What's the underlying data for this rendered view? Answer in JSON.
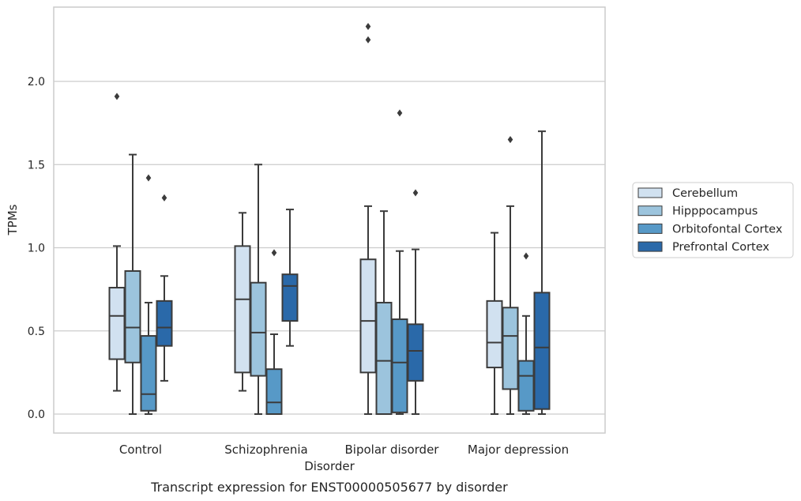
{
  "chart_data": {
    "type": "boxplot",
    "title": "",
    "caption": "Transcript expression for ENST00000505677 by disorder",
    "xlabel": "Disorder",
    "ylabel": "TPMs",
    "ylim": [
      -0.11,
      2.46
    ],
    "yticks": [
      "0.0",
      "0.5",
      "1.0",
      "1.5",
      "2.0"
    ],
    "grid": "horizontal",
    "legend_position": "right",
    "categories": [
      "Control",
      "Schizophrenia",
      "Bipolar disorder",
      "Major depression"
    ],
    "series": [
      {
        "name": "Cerebellum",
        "color": "#d1e1f0",
        "boxes": [
          {
            "whislo": 0.14,
            "q1": 0.33,
            "med": 0.59,
            "q3": 0.76,
            "whishi": 1.01,
            "fliers": [
              1.91
            ]
          },
          {
            "whislo": 0.14,
            "q1": 0.25,
            "med": 0.69,
            "q3": 1.01,
            "whishi": 1.21,
            "fliers": []
          },
          {
            "whislo": 0.0,
            "q1": 0.25,
            "med": 0.56,
            "q3": 0.93,
            "whishi": 1.25,
            "fliers": [
              2.25,
              2.33
            ]
          },
          {
            "whislo": 0.0,
            "q1": 0.28,
            "med": 0.43,
            "q3": 0.68,
            "whishi": 1.09,
            "fliers": []
          }
        ]
      },
      {
        "name": "Hipppocampus",
        "color": "#9cc4dd",
        "boxes": [
          {
            "whislo": 0.0,
            "q1": 0.31,
            "med": 0.52,
            "q3": 0.86,
            "whishi": 1.56,
            "fliers": []
          },
          {
            "whislo": 0.0,
            "q1": 0.23,
            "med": 0.49,
            "q3": 0.79,
            "whishi": 1.5,
            "fliers": []
          },
          {
            "whislo": 0.0,
            "q1": 0.0,
            "med": 0.32,
            "q3": 0.67,
            "whishi": 1.22,
            "fliers": []
          },
          {
            "whislo": 0.0,
            "q1": 0.15,
            "med": 0.47,
            "q3": 0.64,
            "whishi": 1.25,
            "fliers": [
              1.65
            ]
          }
        ]
      },
      {
        "name": "Orbitofontal Cortex",
        "color": "#5799c7",
        "boxes": [
          {
            "whislo": 0.0,
            "q1": 0.02,
            "med": 0.12,
            "q3": 0.47,
            "whishi": 0.67,
            "fliers": [
              1.42
            ]
          },
          {
            "whislo": 0.0,
            "q1": 0.0,
            "med": 0.07,
            "q3": 0.27,
            "whishi": 0.48,
            "fliers": [
              0.97
            ]
          },
          {
            "whislo": 0.0,
            "q1": 0.01,
            "med": 0.31,
            "q3": 0.57,
            "whishi": 0.98,
            "fliers": [
              1.81
            ]
          },
          {
            "whislo": 0.0,
            "q1": 0.02,
            "med": 0.23,
            "q3": 0.32,
            "whishi": 0.59,
            "fliers": [
              0.95
            ]
          }
        ]
      },
      {
        "name": "Prefrontal Cortex",
        "color": "#2a69a9",
        "boxes": [
          {
            "whislo": 0.2,
            "q1": 0.41,
            "med": 0.52,
            "q3": 0.68,
            "whishi": 0.83,
            "fliers": [
              1.3
            ]
          },
          {
            "whislo": 0.41,
            "q1": 0.56,
            "med": 0.77,
            "q3": 0.84,
            "whishi": 1.23,
            "fliers": []
          },
          {
            "whislo": 0.0,
            "q1": 0.2,
            "med": 0.38,
            "q3": 0.54,
            "whishi": 0.99,
            "fliers": [
              1.33
            ]
          },
          {
            "whislo": 0.0,
            "q1": 0.03,
            "med": 0.4,
            "q3": 0.73,
            "whishi": 1.7,
            "fliers": []
          }
        ]
      }
    ]
  }
}
